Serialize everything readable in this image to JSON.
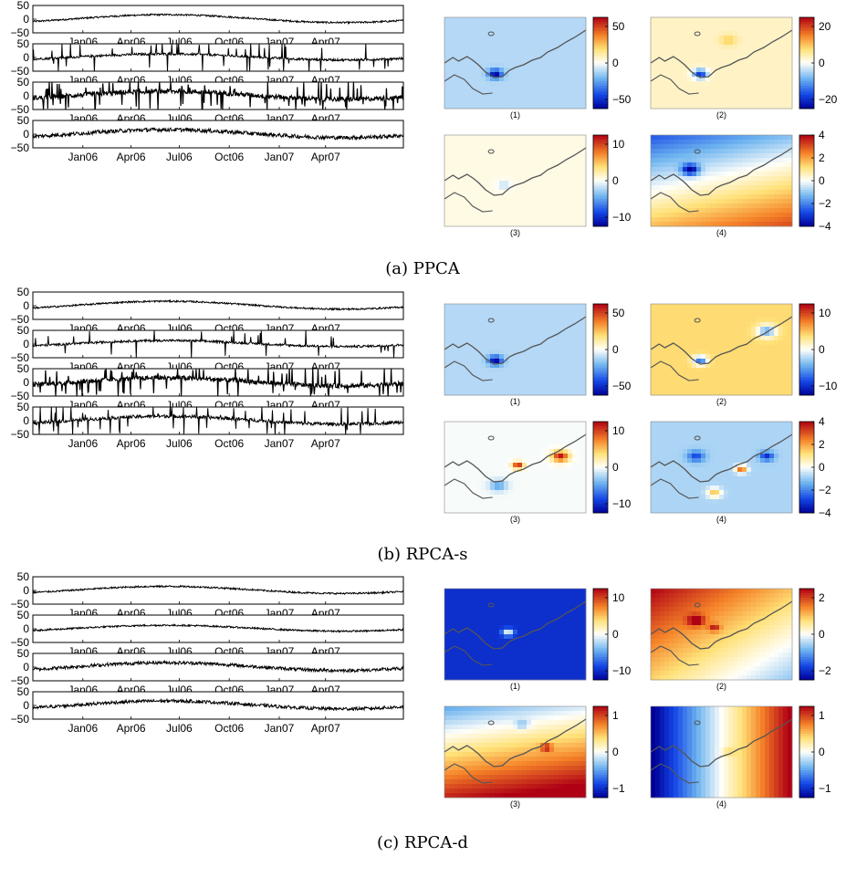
{
  "chart_data": [
    {
      "type": "line",
      "group": "a",
      "caption": "(a) PPCA",
      "x_ticks": [
        "Jan06",
        "Apr06",
        "Jul06",
        "Oct06",
        "Jan07",
        "Apr07"
      ],
      "ylim": [
        -50,
        50
      ],
      "y_ticks": [
        "50",
        "0",
        "−50"
      ],
      "series": [
        {
          "amplitude": 20,
          "noise": 3,
          "spikes": 0.0
        },
        {
          "amplitude": 15,
          "noise": 4,
          "spikes": 0.35
        },
        {
          "amplitude": 20,
          "noise": 8,
          "spikes": 0.85
        },
        {
          "amplitude": 20,
          "noise": 7,
          "spikes": 0.0
        }
      ],
      "maps": [
        {
          "label": "(1)",
          "clim": [
            -60,
            60
          ],
          "cbar_ticks": [
            "50",
            "0",
            "−50"
          ],
          "style": "pale"
        },
        {
          "label": "(2)",
          "clim": [
            -30,
            30
          ],
          "cbar_ticks": [
            "20",
            "0",
            "−20"
          ],
          "style": "paleWarm"
        },
        {
          "label": "(3)",
          "clim": [
            -15,
            15
          ],
          "cbar_ticks": [
            "10",
            "0",
            "−10"
          ],
          "style": "nearWhite"
        },
        {
          "label": "(4)",
          "clim": [
            -4,
            4
          ],
          "cbar_ticks": [
            "4",
            "2",
            "0",
            "−2",
            "−4"
          ],
          "style": "blueTopOrangeBottom"
        }
      ]
    },
    {
      "type": "line",
      "group": "b",
      "caption": "(b) RPCA-s",
      "x_ticks": [
        "Jan06",
        "Apr06",
        "Jul06",
        "Oct06",
        "Jan07",
        "Apr07"
      ],
      "ylim": [
        -50,
        50
      ],
      "y_ticks": [
        "50",
        "0",
        "−50"
      ],
      "series": [
        {
          "amplitude": 20,
          "noise": 3,
          "spikes": 0.0
        },
        {
          "amplitude": 15,
          "noise": 4,
          "spikes": 0.3
        },
        {
          "amplitude": 20,
          "noise": 8,
          "spikes": 0.85
        },
        {
          "amplitude": 20,
          "noise": 6,
          "spikes": 0.45
        }
      ],
      "maps": [
        {
          "label": "(1)",
          "clim": [
            -60,
            60
          ],
          "cbar_ticks": [
            "50",
            "0",
            "−50"
          ],
          "style": "pale"
        },
        {
          "label": "(2)",
          "clim": [
            -15,
            15
          ],
          "cbar_ticks": [
            "10",
            "0",
            "−10"
          ],
          "style": "orangeSpots"
        },
        {
          "label": "(3)",
          "clim": [
            -10,
            10
          ],
          "cbar_ticks": [
            "10",
            "0",
            "−10"
          ],
          "style": "paleSpots"
        },
        {
          "label": "(4)",
          "clim": [
            -4,
            4
          ],
          "cbar_ticks": [
            "4",
            "2",
            "0",
            "−2",
            "−4"
          ],
          "style": "blueSpots"
        }
      ]
    },
    {
      "type": "line",
      "group": "c",
      "caption": "(c) RPCA-d",
      "x_ticks": [
        "Jan06",
        "Apr06",
        "Jul06",
        "Oct06",
        "Jan07",
        "Apr07"
      ],
      "ylim": [
        -50,
        50
      ],
      "y_ticks": [
        "50",
        "0",
        "−50"
      ],
      "series": [
        {
          "amplitude": 18,
          "noise": 3,
          "spikes": 0.0
        },
        {
          "amplitude": 15,
          "noise": 3,
          "spikes": 0.0
        },
        {
          "amplitude": 20,
          "noise": 6,
          "spikes": 0.0
        },
        {
          "amplitude": 20,
          "noise": 6,
          "spikes": 0.0
        }
      ],
      "maps": [
        {
          "label": "(1)",
          "clim": [
            -12,
            12
          ],
          "cbar_ticks": [
            "10",
            "0",
            "−10"
          ],
          "style": "deepBlue"
        },
        {
          "label": "(2)",
          "clim": [
            -3,
            3
          ],
          "cbar_ticks": [
            "2",
            "0",
            "−2"
          ],
          "style": "warmTopBlueBottomRight"
        },
        {
          "label": "(3)",
          "clim": [
            -1.5,
            1.5
          ],
          "cbar_ticks": [
            "1",
            "0",
            "−1"
          ],
          "style": "blueTopRedBottom"
        },
        {
          "label": "(4)",
          "clim": [
            -1.2,
            1.2
          ],
          "cbar_ticks": [
            "1",
            "0",
            "−1"
          ],
          "style": "blueLeftRedRight"
        }
      ]
    }
  ]
}
